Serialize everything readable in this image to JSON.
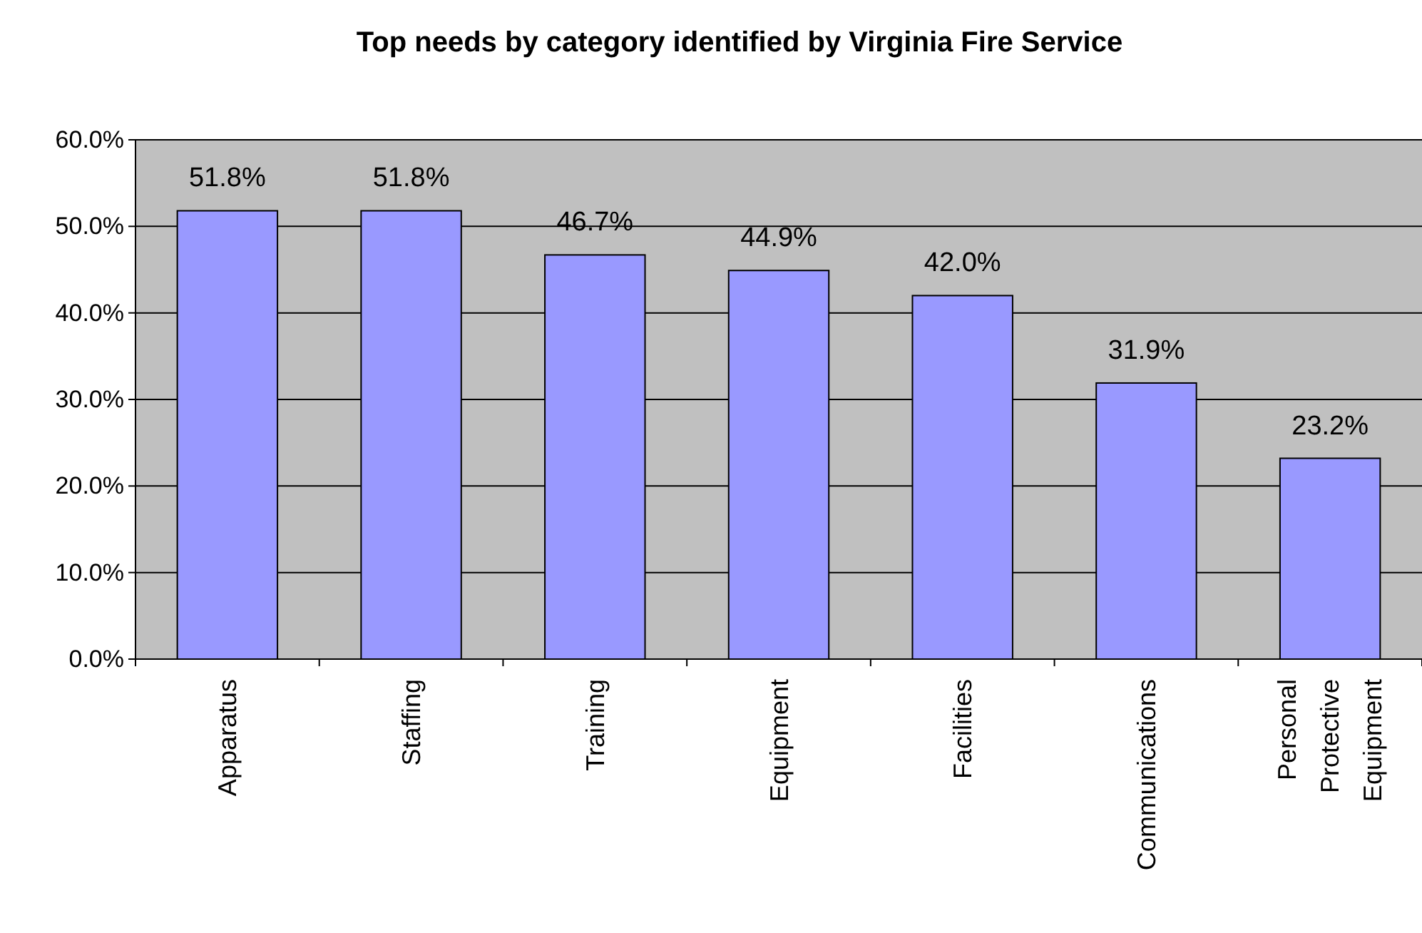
{
  "chart_data": {
    "type": "bar",
    "title": "Top needs by category identified by Virginia Fire Service",
    "categories": [
      "Apparatus",
      "Staffing",
      "Training",
      "Equipment",
      "Facilities",
      "Communications",
      "Personal Protective Equipment"
    ],
    "values": [
      51.8,
      51.8,
      46.7,
      44.9,
      42.0,
      31.9,
      23.2
    ],
    "value_labels": [
      "51.8%",
      "51.8%",
      "46.7%",
      "44.9%",
      "42.0%",
      "31.9%",
      "23.2%"
    ],
    "color": "#9999ff",
    "ylim": [
      0,
      60
    ],
    "yticks": [
      {
        "value": 0,
        "label": "0.0%"
      },
      {
        "value": 10,
        "label": "10.0%"
      },
      {
        "value": 20,
        "label": "20.0%"
      },
      {
        "value": 30,
        "label": "30.0%"
      },
      {
        "value": 40,
        "label": "40.0%"
      },
      {
        "value": 50,
        "label": "50.0%"
      },
      {
        "value": 60,
        "label": "60.0%"
      }
    ],
    "grid": "y"
  }
}
